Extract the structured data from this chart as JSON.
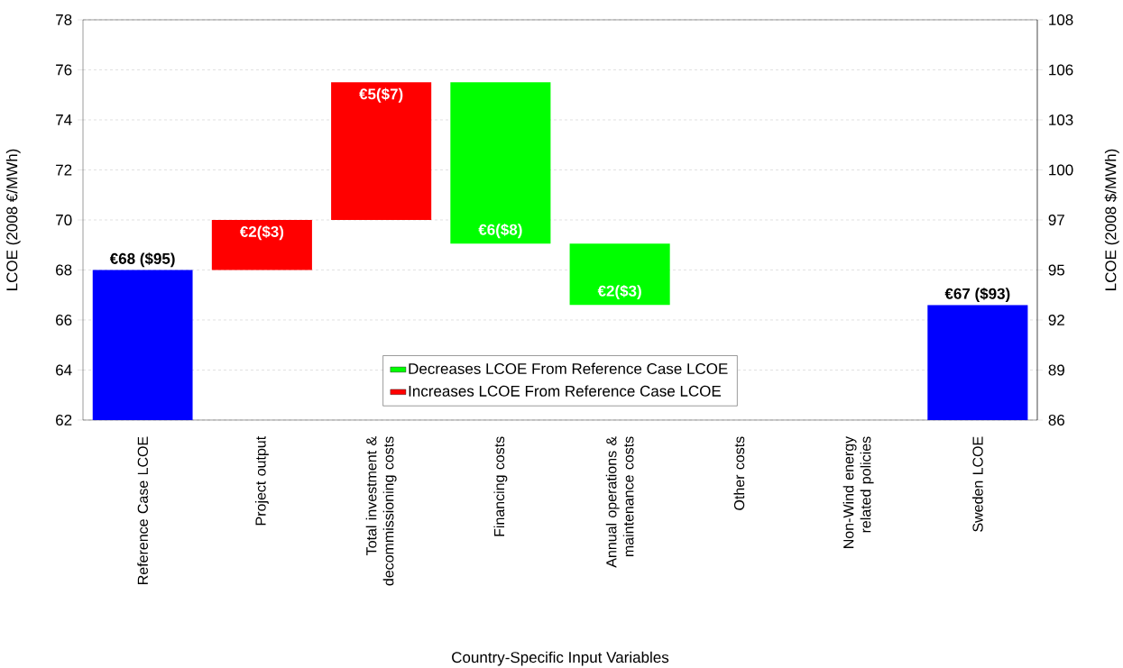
{
  "chart_data": {
    "type": "bar",
    "xlabel": "Country-Specific Input Variables",
    "ylabel": "LCOE (2008 €/MWh)",
    "y2label": "LCOE (2008 $/MWh)",
    "categories": [
      "Reference Case LCOE",
      "Project output",
      "Total investment & decommissioning costs",
      "Financing costs",
      "Annual operations & maintenance costs",
      "Other costs",
      "Non-Wind energy related policies",
      "Sweden LCOE"
    ],
    "series": [
      {
        "color": "#0000ff",
        "values": [
          68.0,
          null,
          null,
          null,
          null,
          null,
          null,
          66.6
        ],
        "value_labels": [
          "€68 ($95)",
          null,
          null,
          null,
          null,
          null,
          null,
          "€67 ($93)"
        ]
      },
      {
        "name": "Decreases LCOE From Reference Case LCOE",
        "color": "#00ff00",
        "values": [
          null,
          null,
          null,
          6.45,
          2.45,
          null,
          null,
          null
        ],
        "base": [
          null,
          null,
          null,
          69.05,
          66.6,
          null,
          null,
          null
        ],
        "value_labels": [
          null,
          null,
          null,
          "€6($8)",
          "€2($3)",
          null,
          null,
          null
        ]
      },
      {
        "name": "Increases LCOE From Reference Case LCOE",
        "color": "#ff0000",
        "values": [
          null,
          2.0,
          5.5,
          null,
          null,
          null,
          null,
          null
        ],
        "base": [
          null,
          68.0,
          70.0,
          null,
          null,
          null,
          null,
          null
        ],
        "value_labels": [
          null,
          "€2($3)",
          "€5($7)",
          null,
          null,
          null,
          null,
          null
        ]
      }
    ],
    "ylim": [
      62,
      78
    ],
    "yticks": [
      62,
      64,
      66,
      68,
      70,
      72,
      74,
      76,
      78
    ],
    "y2lim": [
      86.18,
      108.42
    ],
    "y2ticks": [
      {
        "value": 86.18,
        "label": "86"
      },
      {
        "value": 88.96,
        "label": "89"
      },
      {
        "value": 91.74,
        "label": "92"
      },
      {
        "value": 94.52,
        "label": "95"
      },
      {
        "value": 97.3,
        "label": "97"
      },
      {
        "value": 100.08,
        "label": "100"
      },
      {
        "value": 102.86,
        "label": "103"
      },
      {
        "value": 105.64,
        "label": "106"
      },
      {
        "value": 108.42,
        "label": "108"
      }
    ],
    "grid": "y",
    "legend": "bottom"
  }
}
